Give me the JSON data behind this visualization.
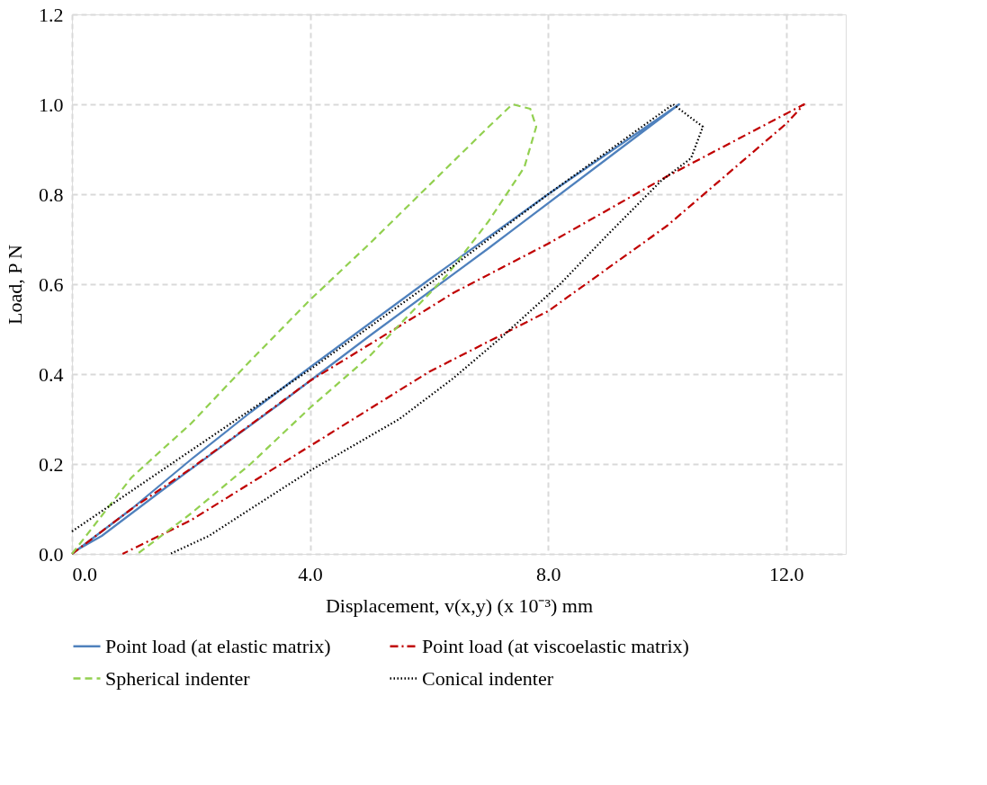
{
  "chart_data": {
    "type": "line",
    "xlabel": "Displacement, v(x,y) (x 10⁻³) mm",
    "ylabel": "Load, P N",
    "xlim": [
      0,
      13
    ],
    "ylim": [
      0,
      1.2
    ],
    "xticks": [
      {
        "value": 0,
        "label": "0.0"
      },
      {
        "value": 4,
        "label": "4.0"
      },
      {
        "value": 8,
        "label": "8.0"
      },
      {
        "value": 12,
        "label": "12.0"
      }
    ],
    "yticks": [
      {
        "value": 0,
        "label": "0.0"
      },
      {
        "value": 0.2,
        "label": "0.2"
      },
      {
        "value": 0.4,
        "label": "0.4"
      },
      {
        "value": 0.6,
        "label": "0.6"
      },
      {
        "value": 0.8,
        "label": "0.8"
      },
      {
        "value": 1.0,
        "label": "1.0"
      },
      {
        "value": 1.2,
        "label": "1.2"
      }
    ],
    "grid": true,
    "legend": "bottom",
    "marker": "none",
    "series": [
      {
        "name": "Point load (at elastic matrix)",
        "color": "#4f81bd",
        "line_style": "solid",
        "x": [
          0,
          1,
          2,
          3,
          4,
          6,
          8,
          10.2,
          9,
          7,
          5,
          3.5,
          1.5,
          0.5,
          0.1
        ],
        "values": [
          0,
          0.1,
          0.21,
          0.315,
          0.415,
          0.61,
          0.8,
          1.0,
          0.88,
          0.68,
          0.485,
          0.335,
          0.14,
          0.04,
          0.01
        ]
      },
      {
        "name": "Point load (at viscoelastic matrix)",
        "color": "#c00000",
        "line_style": "dashdot",
        "x": [
          0,
          1,
          2,
          4,
          6,
          6.4,
          8,
          10,
          12.3,
          12,
          10,
          8,
          6,
          4,
          2,
          0.85
        ],
        "values": [
          0,
          0.1,
          0.19,
          0.385,
          0.547,
          0.58,
          0.69,
          0.84,
          1.0,
          0.957,
          0.73,
          0.54,
          0.405,
          0.24,
          0.075,
          0
        ]
      },
      {
        "name": "Spherical indenter",
        "color": "#92d050",
        "line_style": "dashed",
        "x": [
          0,
          1,
          2,
          3,
          4,
          5,
          6,
          7,
          7.4,
          7.7,
          7.8,
          7.6,
          7.0,
          6.3,
          5,
          4,
          3,
          2,
          1.1
        ],
        "values": [
          0,
          0.17,
          0.29,
          0.43,
          0.565,
          0.69,
          0.82,
          0.95,
          1.0,
          0.99,
          0.95,
          0.86,
          0.74,
          0.62,
          0.44,
          0.325,
          0.2,
          0.09,
          0
        ]
      },
      {
        "name": "Conical indenter",
        "color": "#000000",
        "line_style": "dotted",
        "x": [
          0,
          1,
          2,
          3,
          4,
          6,
          8,
          10.1,
          10.6,
          10.4,
          9.9,
          9,
          8.2,
          7.2,
          6.4,
          5.5,
          4,
          3,
          2.3,
          1.65
        ],
        "values": [
          0.05,
          0.14,
          0.23,
          0.32,
          0.41,
          0.6,
          0.8,
          1.0,
          0.95,
          0.88,
          0.83,
          0.71,
          0.6,
          0.48,
          0.39,
          0.3,
          0.185,
          0.1,
          0.04,
          0
        ]
      }
    ]
  }
}
